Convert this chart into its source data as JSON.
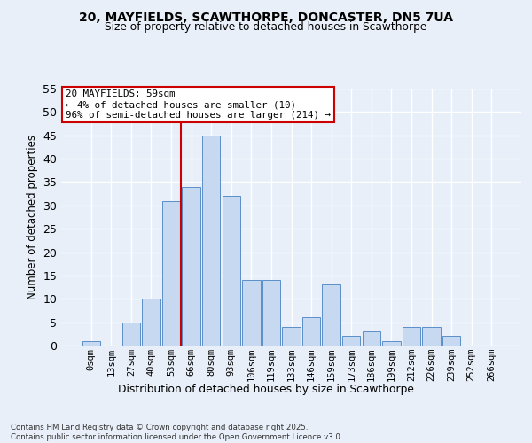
{
  "title1": "20, MAYFIELDS, SCAWTHORPE, DONCASTER, DN5 7UA",
  "title2": "Size of property relative to detached houses in Scawthorpe",
  "xlabel": "Distribution of detached houses by size in Scawthorpe",
  "ylabel": "Number of detached properties",
  "bar_labels": [
    "0sqm",
    "13sqm",
    "27sqm",
    "40sqm",
    "53sqm",
    "66sqm",
    "80sqm",
    "93sqm",
    "106sqm",
    "119sqm",
    "133sqm",
    "146sqm",
    "159sqm",
    "173sqm",
    "186sqm",
    "199sqm",
    "212sqm",
    "226sqm",
    "239sqm",
    "252sqm",
    "266sqm"
  ],
  "bar_values": [
    1,
    0,
    5,
    10,
    31,
    34,
    45,
    32,
    14,
    14,
    4,
    6,
    13,
    2,
    3,
    1,
    4,
    4,
    2,
    0,
    0
  ],
  "bar_color": "#c6d9f0",
  "bar_edge_color": "#5b8fc9",
  "vline_x": 4.5,
  "vline_color": "#cc0000",
  "annotation_text": "20 MAYFIELDS: 59sqm\n← 4% of detached houses are smaller (10)\n96% of semi-detached houses are larger (214) →",
  "annotation_box_color": "#ffffff",
  "annotation_box_edge": "#cc0000",
  "bg_color": "#e8eff8",
  "plot_bg_color": "#e8eff8",
  "grid_color": "#ffffff",
  "ylim": [
    0,
    55
  ],
  "yticks": [
    0,
    5,
    10,
    15,
    20,
    25,
    30,
    35,
    40,
    45,
    50,
    55
  ],
  "footer": "Contains HM Land Registry data © Crown copyright and database right 2025.\nContains public sector information licensed under the Open Government Licence v3.0."
}
